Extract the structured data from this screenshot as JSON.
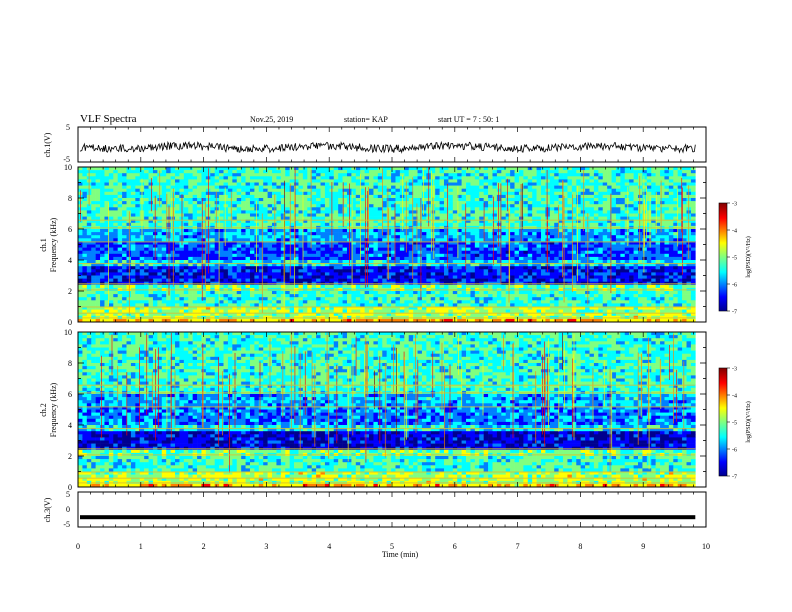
{
  "header": {
    "title": "VLF Spectra",
    "date": "Nov.25, 2019",
    "station": "station= KAP",
    "start": "start UT = 7 : 50: 1"
  },
  "chart_data": [
    {
      "type": "line",
      "panel": "ch1-waveform",
      "ylabel": "ch.1(V)",
      "ylim": [
        -5,
        5
      ],
      "y_ticks": [
        "5",
        "-5"
      ],
      "xlim": [
        0,
        9.83
      ],
      "approx_baseline": -0.8
    },
    {
      "type": "heatmap",
      "panel": "ch1-spectrogram",
      "ylabel_top": "ch.1",
      "ylabel": "Frequency (kHz)",
      "ylim": [
        0,
        10
      ],
      "y_ticks": [
        "0",
        "2",
        "4",
        "6",
        "8",
        "10"
      ],
      "colorbar": {
        "label": "log(PSD)(V²/Hz)",
        "range": [
          -7,
          -3
        ],
        "ticks": [
          "-3",
          "-4",
          "-5",
          "-6",
          "-7"
        ]
      }
    },
    {
      "type": "heatmap",
      "panel": "ch2-spectrogram",
      "ylabel_top": "ch.2",
      "ylabel": "Frequency (kHz)",
      "ylim": [
        0,
        10
      ],
      "y_ticks": [
        "0",
        "2",
        "4",
        "6",
        "8",
        "10"
      ],
      "colorbar": {
        "label": "log(PSD)(V²/Hz)",
        "range": [
          -7,
          -3
        ],
        "ticks": [
          "-3",
          "-4",
          "-5",
          "-6",
          "-7"
        ]
      }
    },
    {
      "type": "line",
      "panel": "ch3-waveform",
      "ylabel": "ch.3(V)",
      "ylim": [
        -5,
        5
      ],
      "y_ticks": [
        "5",
        "0",
        "-5"
      ],
      "approx_value": -2.2
    }
  ],
  "xaxis": {
    "label": "Time (min)",
    "range": [
      0,
      10
    ],
    "ticks": [
      "0",
      "1",
      "2",
      "3",
      "4",
      "5",
      "6",
      "7",
      "8",
      "9",
      "10"
    ]
  },
  "colors": {
    "jet": [
      "#00008f",
      "#0000ff",
      "#0080ff",
      "#00ffff",
      "#80ff80",
      "#ffff00",
      "#ff8000",
      "#ff0000",
      "#800000"
    ]
  }
}
